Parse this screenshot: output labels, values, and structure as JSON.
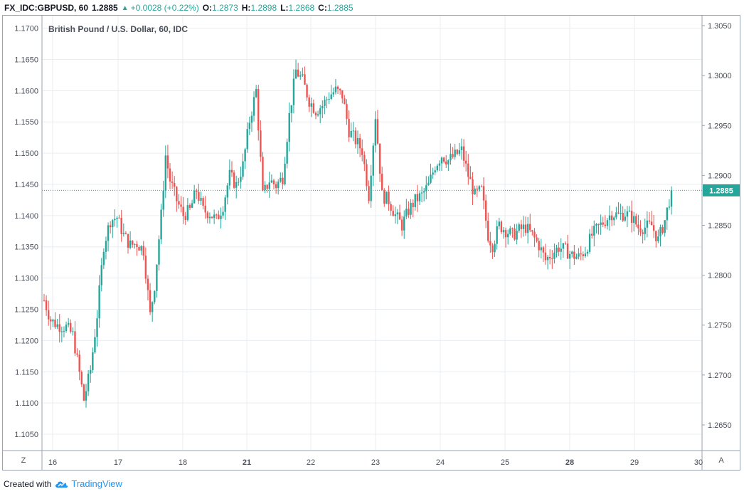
{
  "header": {
    "symbol": "FX_IDC:GBPUSD, 60",
    "last": "1.2885",
    "change": "+0.0028 (+0.22%)",
    "o_label": "O:",
    "o_value": "1.2873",
    "h_label": "H:",
    "h_value": "1.2898",
    "l_label": "L:",
    "l_value": "1.2868",
    "c_label": "C:",
    "c_value": "1.2885"
  },
  "footer": {
    "created_with": "Created with",
    "brand": "TradingView"
  },
  "buttons": {
    "left": "Z",
    "right": "A"
  },
  "colors": {
    "up": "#26a69a",
    "down": "#ef5350",
    "grid": "#e9edf1",
    "price_line": "#26a69a",
    "axis_text": "#4a4f59"
  },
  "chart_data": {
    "type": "candlestick",
    "title": "British Pound / U.S. Dollar, 60, IDC",
    "left_axis": {
      "ticks": [
        "1.1700",
        "1.1650",
        "1.1600",
        "1.1550",
        "1.1500",
        "1.1450",
        "1.1400",
        "1.1350",
        "1.1300",
        "1.1250",
        "1.1200",
        "1.1150",
        "1.1100",
        "1.1050"
      ],
      "ylim": [
        1.1025,
        1.172
      ]
    },
    "right_axis": {
      "ticks": [
        "1.3050",
        "1.3000",
        "1.2950",
        "1.2900",
        "1.2850",
        "1.2800",
        "1.2750",
        "1.2700",
        "1.2650"
      ],
      "ylim": [
        1.2625,
        1.306
      ]
    },
    "x_axis": {
      "labels": [
        "16",
        "17",
        "18",
        "21",
        "22",
        "23",
        "24",
        "25",
        "28",
        "29",
        "30"
      ],
      "bold": [
        "21",
        "28"
      ]
    },
    "grid": true,
    "last_price": "1.2885",
    "anchors": [
      [
        0,
        1.2775
      ],
      [
        3,
        1.2755
      ],
      [
        6,
        1.275
      ],
      [
        10,
        1.2748
      ],
      [
        13,
        1.274
      ],
      [
        15,
        1.2715
      ],
      [
        18,
        1.2675
      ],
      [
        21,
        1.2705
      ],
      [
        24,
        1.276
      ],
      [
        27,
        1.283
      ],
      [
        30,
        1.2855
      ],
      [
        33,
        1.2858
      ],
      [
        36,
        1.284
      ],
      [
        39,
        1.283
      ],
      [
        42,
        1.2832
      ],
      [
        45,
        1.2825
      ],
      [
        48,
        1.276
      ],
      [
        50,
        1.279
      ],
      [
        53,
        1.286
      ],
      [
        55,
        1.292
      ],
      [
        57,
        1.2895
      ],
      [
        60,
        1.2875
      ],
      [
        63,
        1.286
      ],
      [
        66,
        1.2865
      ],
      [
        69,
        1.2885
      ],
      [
        72,
        1.2865
      ],
      [
        75,
        1.2862
      ],
      [
        78,
        1.2855
      ],
      [
        81,
        1.287
      ],
      [
        84,
        1.29
      ],
      [
        87,
        1.289
      ],
      [
        90,
        1.291
      ],
      [
        93,
        1.2955
      ],
      [
        96,
        1.2985
      ],
      [
        99,
        1.288
      ],
      [
        102,
        1.2895
      ],
      [
        105,
        1.289
      ],
      [
        108,
        1.2898
      ],
      [
        111,
        1.296
      ],
      [
        114,
        1.3005
      ],
      [
        117,
        1.2995
      ],
      [
        120,
        1.2975
      ],
      [
        123,
        1.2965
      ],
      [
        126,
        1.297
      ],
      [
        129,
        1.298
      ],
      [
        132,
        1.2985
      ],
      [
        135,
        1.298
      ],
      [
        138,
        1.2945
      ],
      [
        141,
        1.2935
      ],
      [
        144,
        1.2925
      ],
      [
        147,
        1.288
      ],
      [
        150,
        1.296
      ],
      [
        153,
        1.288
      ],
      [
        156,
        1.2875
      ],
      [
        159,
        1.286
      ],
      [
        162,
        1.285
      ],
      [
        165,
        1.2865
      ],
      [
        168,
        1.2875
      ],
      [
        171,
        1.288
      ],
      [
        174,
        1.289
      ],
      [
        177,
        1.291
      ],
      [
        180,
        1.292
      ],
      [
        183,
        1.2915
      ],
      [
        186,
        1.292
      ],
      [
        189,
        1.2925
      ],
      [
        192,
        1.29
      ],
      [
        195,
        1.288
      ],
      [
        198,
        1.2885
      ],
      [
        201,
        1.284
      ],
      [
        203,
        1.283
      ],
      [
        206,
        1.285
      ],
      [
        209,
        1.2845
      ],
      [
        212,
        1.284
      ],
      [
        215,
        1.2845
      ],
      [
        218,
        1.2848
      ],
      [
        221,
        1.284
      ],
      [
        224,
        1.283
      ],
      [
        227,
        1.2815
      ],
      [
        230,
        1.2822
      ],
      [
        233,
        1.2828
      ],
      [
        236,
        1.2825
      ],
      [
        239,
        1.282
      ],
      [
        242,
        1.2818
      ],
      [
        245,
        1.2825
      ],
      [
        248,
        1.284
      ],
      [
        251,
        1.2848
      ],
      [
        254,
        1.2855
      ],
      [
        257,
        1.2862
      ],
      [
        260,
        1.286
      ],
      [
        263,
        1.2862
      ],
      [
        266,
        1.2858
      ],
      [
        269,
        1.2848
      ],
      [
        272,
        1.2848
      ],
      [
        275,
        1.285
      ],
      [
        278,
        1.2835
      ],
      [
        281,
        1.2855
      ],
      [
        284,
        1.2885
      ]
    ]
  }
}
